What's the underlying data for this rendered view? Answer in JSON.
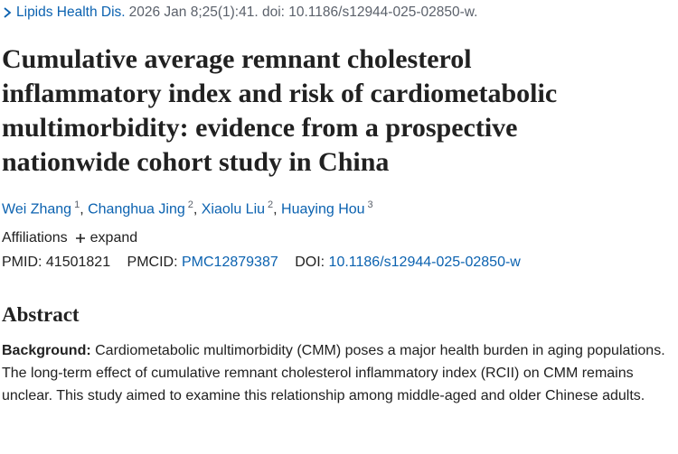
{
  "citation": {
    "journal": "Lipids Health Dis.",
    "details": "2026 Jan 8;25(1):41. doi: 10.1186/s12944-025-02850-w."
  },
  "title": [
    "Cumulative average remnant cholesterol",
    "inflammatory index and risk of cardiometabolic",
    "multimorbidity: evidence from a prospective",
    "nationwide cohort study in China"
  ],
  "authors": [
    {
      "name": "Wei Zhang",
      "aff": "1"
    },
    {
      "name": "Changhua Jing",
      "aff": "2"
    },
    {
      "name": "Xiaolu Liu",
      "aff": "2"
    },
    {
      "name": "Huaying Hou",
      "aff": "3"
    }
  ],
  "affiliations": {
    "label": "Affiliations",
    "toggle": "expand"
  },
  "ids": {
    "pmid_label": "PMID:",
    "pmid": "41501821",
    "pmcid_label": "PMCID:",
    "pmcid": "PMC12879387",
    "doi_label": "DOI:",
    "doi": "10.1186/s12944-025-02850-w"
  },
  "abstract": {
    "heading": "Abstract",
    "background_label": "Background:",
    "background": "Cardiometabolic multimorbidity (CMM) poses a major health burden in aging populations. The long-term effect of cumulative remnant cholesterol inflammatory index (RCII) on CMM remains unclear. This study aimed to examine this relationship among middle-aged and older Chinese adults."
  }
}
